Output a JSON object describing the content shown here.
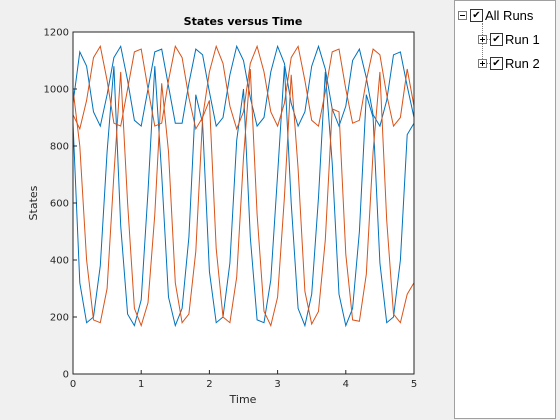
{
  "chart_data": {
    "type": "line",
    "title": "States versus Time",
    "xlabel": "Time",
    "ylabel": "States",
    "xlim": [
      0,
      5
    ],
    "ylim": [
      0,
      1200
    ],
    "xticks": [
      0,
      1,
      2,
      3,
      4,
      5
    ],
    "yticks": [
      0,
      200,
      400,
      600,
      800,
      1000,
      1200
    ],
    "grid": false,
    "series": [
      {
        "color": "#0072bd",
        "x": [
          0,
          0.1,
          0.2,
          0.3,
          0.4,
          0.5,
          0.6,
          0.7,
          0.8,
          0.9,
          1.0,
          1.1,
          1.2,
          1.3,
          1.4,
          1.5,
          1.6,
          1.7,
          1.8,
          1.9,
          2.0,
          2.1,
          2.2,
          2.3,
          2.4,
          2.5,
          2.6,
          2.7,
          2.8,
          2.9,
          3.0,
          3.1,
          3.2,
          3.3,
          3.4,
          3.5,
          3.6,
          3.7,
          3.8,
          3.9,
          4.0,
          4.1,
          4.2,
          4.3,
          4.4,
          4.5,
          4.6,
          4.7,
          4.8,
          4.9,
          5.0
        ],
        "values": [
          950,
          1130,
          1080,
          920,
          870,
          980,
          1110,
          1150,
          1030,
          890,
          870,
          1000,
          1130,
          1140,
          1010,
          880,
          880,
          1020,
          1140,
          1120,
          990,
          870,
          900,
          1050,
          1150,
          1100,
          970,
          870,
          900,
          1060,
          1150,
          1090,
          950,
          870,
          920,
          1080,
          1150,
          1070,
          930,
          870,
          940,
          1100,
          1140,
          1040,
          910,
          870,
          960,
          1120,
          1130,
          1010,
          900
        ]
      },
      {
        "color": "#0072bd",
        "x": [
          0,
          0.1,
          0.2,
          0.3,
          0.4,
          0.5,
          0.6,
          0.7,
          0.8,
          0.9,
          1.0,
          1.1,
          1.2,
          1.3,
          1.4,
          1.5,
          1.6,
          1.7,
          1.8,
          1.9,
          2.0,
          2.1,
          2.2,
          2.3,
          2.4,
          2.5,
          2.6,
          2.7,
          2.8,
          2.9,
          3.0,
          3.1,
          3.2,
          3.3,
          3.4,
          3.5,
          3.6,
          3.7,
          3.8,
          3.9,
          4.0,
          4.1,
          4.2,
          4.3,
          4.4,
          4.5,
          4.6,
          4.7,
          4.8,
          4.9,
          5.0
        ],
        "values": [
          880,
          320,
          180,
          200,
          380,
          780,
          1080,
          520,
          210,
          170,
          260,
          640,
          1080,
          700,
          270,
          170,
          230,
          480,
          980,
          880,
          360,
          180,
          200,
          390,
          820,
          1000,
          480,
          190,
          180,
          330,
          700,
          1080,
          600,
          230,
          170,
          280,
          620,
          1060,
          740,
          280,
          170,
          230,
          500,
          980,
          900,
          390,
          180,
          200,
          400,
          840,
          880
        ]
      },
      {
        "color": "#d95319",
        "x": [
          0,
          0.1,
          0.2,
          0.3,
          0.4,
          0.5,
          0.6,
          0.7,
          0.8,
          0.9,
          1.0,
          1.1,
          1.2,
          1.3,
          1.4,
          1.5,
          1.6,
          1.7,
          1.8,
          1.9,
          2.0,
          2.1,
          2.2,
          2.3,
          2.4,
          2.5,
          2.6,
          2.7,
          2.8,
          2.9,
          3.0,
          3.1,
          3.2,
          3.3,
          3.4,
          3.5,
          3.6,
          3.7,
          3.8,
          3.9,
          4.0,
          4.1,
          4.2,
          4.3,
          4.4,
          4.5,
          4.6,
          4.7,
          4.8,
          4.9,
          5.0
        ],
        "values": [
          910,
          860,
          960,
          1110,
          1150,
          1030,
          880,
          870,
          1000,
          1130,
          1140,
          1000,
          870,
          880,
          1030,
          1150,
          1110,
          970,
          860,
          900,
          1060,
          1150,
          1090,
          940,
          860,
          920,
          1090,
          1150,
          1060,
          920,
          870,
          950,
          1110,
          1150,
          1030,
          890,
          870,
          990,
          1130,
          1140,
          1000,
          880,
          890,
          1030,
          1140,
          1120,
          980,
          870,
          900,
          1070,
          940
        ]
      },
      {
        "color": "#d95319",
        "x": [
          0,
          0.1,
          0.2,
          0.3,
          0.4,
          0.5,
          0.6,
          0.7,
          0.8,
          0.9,
          1.0,
          1.1,
          1.2,
          1.3,
          1.4,
          1.5,
          1.6,
          1.7,
          1.8,
          1.9,
          2.0,
          2.1,
          2.2,
          2.3,
          2.4,
          2.5,
          2.6,
          2.7,
          2.8,
          2.9,
          3.0,
          3.1,
          3.2,
          3.3,
          3.4,
          3.5,
          3.6,
          3.7,
          3.8,
          3.9,
          4.0,
          4.1,
          4.2,
          4.3,
          4.4,
          4.5,
          4.6,
          4.7,
          4.8,
          4.9,
          5.0
        ],
        "values": [
          1000,
          800,
          400,
          190,
          180,
          300,
          700,
          1060,
          600,
          230,
          170,
          250,
          560,
          1020,
          780,
          320,
          180,
          210,
          430,
          900,
          960,
          440,
          200,
          180,
          340,
          760,
          1070,
          560,
          220,
          170,
          270,
          620,
          1050,
          720,
          290,
          175,
          220,
          470,
          930,
          920,
          420,
          190,
          185,
          350,
          780,
          1060,
          540,
          210,
          180,
          280,
          320
        ]
      }
    ]
  },
  "tree": {
    "root_label": "All Runs",
    "runs": [
      "Run 1",
      "Run 2"
    ],
    "check_glyph": "✔"
  }
}
